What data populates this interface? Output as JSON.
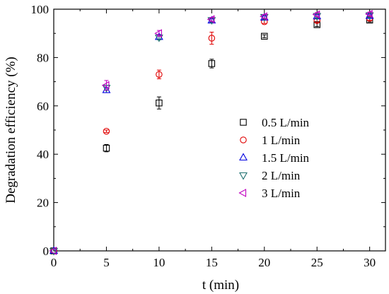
{
  "chart_data": {
    "type": "scatter",
    "xlabel": "t (min)",
    "ylabel": "Degradation efficiency (%)",
    "xlim": [
      0,
      31.5
    ],
    "ylim": [
      0,
      100
    ],
    "xticks": [
      0,
      5,
      10,
      15,
      20,
      25,
      30
    ],
    "yticks": [
      0,
      20,
      40,
      60,
      80,
      100
    ],
    "legend_position": "center-right",
    "grid": false,
    "x": [
      0,
      5,
      10,
      15,
      20,
      25,
      30
    ],
    "series": [
      {
        "name": "0.5 L/min",
        "marker": "square",
        "color": "#000000",
        "values": [
          0,
          42.5,
          61.2,
          77.5,
          88.8,
          93.6,
          95.5
        ],
        "errors": [
          0,
          1.5,
          2.5,
          1.8,
          0.6,
          0.8,
          0.8
        ]
      },
      {
        "name": "1 L/min",
        "marker": "circle",
        "color": "#e00000",
        "values": [
          0,
          49.5,
          73.0,
          88.0,
          94.8,
          95.3,
          96.2
        ],
        "errors": [
          0,
          0.5,
          1.8,
          2.5,
          0.7,
          0.8,
          0.8
        ]
      },
      {
        "name": "1.5 L/min",
        "marker": "triangle-up",
        "color": "#0000e0",
        "values": [
          0,
          66.5,
          88.5,
          95.3,
          96.5,
          97.0,
          97.2
        ],
        "errors": [
          0,
          1.0,
          1.0,
          0.8,
          0.8,
          0.8,
          0.8
        ]
      },
      {
        "name": "2 L/min",
        "marker": "triangle-down",
        "color": "#1e7070",
        "values": [
          0,
          67.5,
          88.3,
          95.5,
          96.8,
          97.2,
          97.5
        ],
        "errors": [
          0,
          1.0,
          1.0,
          0.8,
          0.8,
          0.8,
          0.8
        ]
      },
      {
        "name": "3 L/min",
        "marker": "triangle-left",
        "color": "#c000c0",
        "values": [
          0,
          68.5,
          90.0,
          95.8,
          97.0,
          97.8,
          98.0
        ],
        "errors": [
          0,
          2.0,
          1.2,
          0.8,
          0.8,
          0.8,
          0.8
        ]
      }
    ]
  }
}
